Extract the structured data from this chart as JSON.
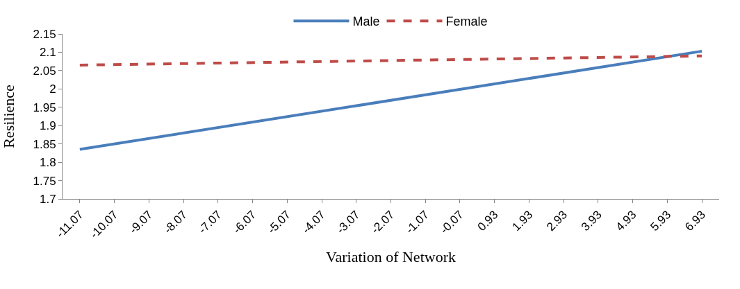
{
  "chart_data": {
    "type": "line",
    "xlabel": "Variation of Network",
    "ylabel": "Resilience",
    "x": [
      -11.07,
      6.93
    ],
    "xlim": [
      -11.57,
      7.43
    ],
    "xticks": [
      -11.07,
      -10.07,
      -9.07,
      -8.07,
      -7.07,
      -6.07,
      -5.07,
      -4.07,
      -3.07,
      -2.07,
      -1.07,
      -0.07,
      0.93,
      1.93,
      2.93,
      3.93,
      4.93,
      5.93,
      6.93
    ],
    "ylim": [
      1.7,
      2.15
    ],
    "yticks": [
      1.7,
      1.75,
      1.8,
      1.85,
      1.9,
      1.95,
      2,
      2.05,
      2.1,
      2.15
    ],
    "legend": "top",
    "marker": "none",
    "series": [
      {
        "name": "Male",
        "color": "#4a7ebb",
        "values": [
          1.835,
          2.103
        ],
        "line_style": "solid"
      },
      {
        "name": "Female",
        "color": "#be4b48",
        "values": [
          2.065,
          2.09
        ],
        "line_style": "dashed"
      }
    ]
  }
}
